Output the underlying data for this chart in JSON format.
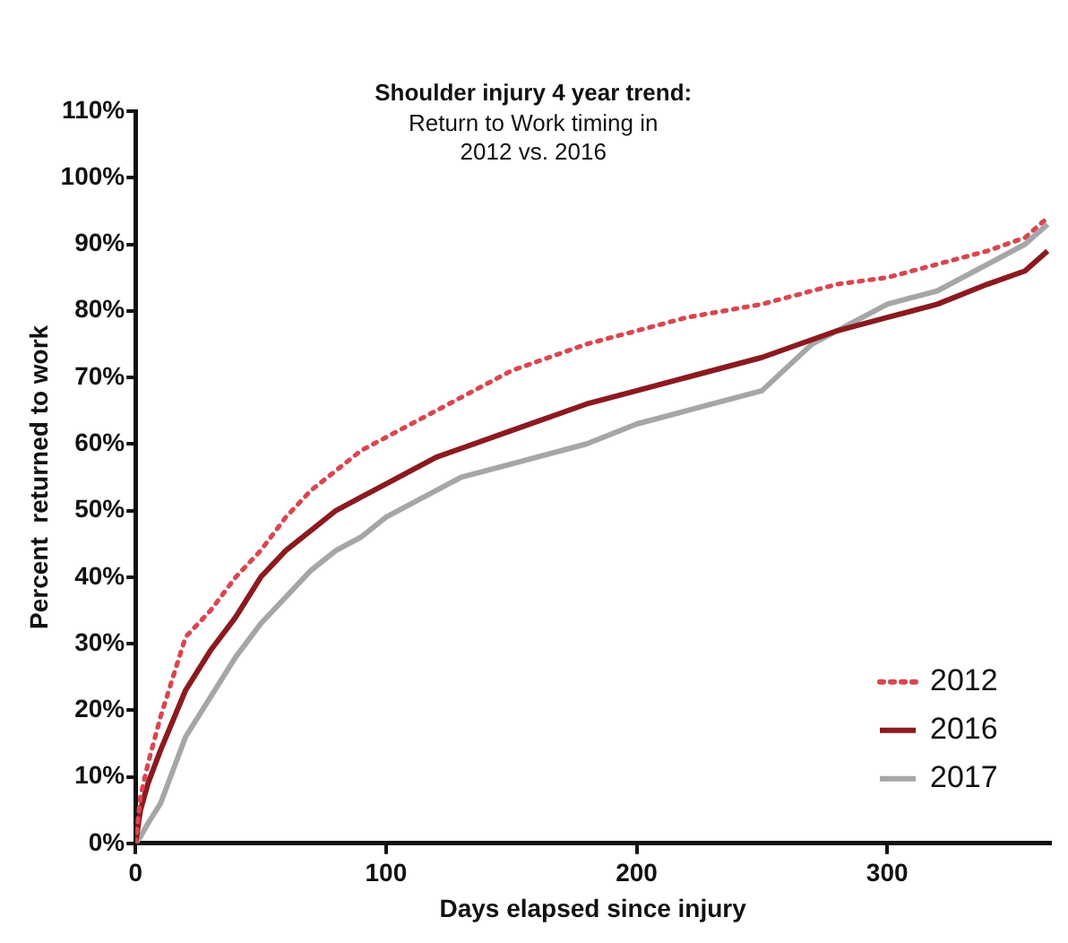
{
  "chart_data": {
    "type": "line",
    "title": "Shoulder injury 4 year trend:",
    "subtitle": "Return to Work timing in 2012 vs. 2016",
    "xlabel": "Days elapsed since injury",
    "ylabel": "Percent  returned to work",
    "xlim": [
      0,
      365
    ],
    "xticks": [
      0,
      100,
      200,
      300
    ],
    "ylim": [
      0,
      110
    ],
    "yticks": [
      {
        "value": 0,
        "label": "0%"
      },
      {
        "value": 10,
        "label": "10%"
      },
      {
        "value": 20,
        "label": "20%"
      },
      {
        "value": 30,
        "label": "30%"
      },
      {
        "value": 40,
        "label": "40%"
      },
      {
        "value": 50,
        "label": "50%"
      },
      {
        "value": 60,
        "label": "60%"
      },
      {
        "value": 70,
        "label": "70%"
      },
      {
        "value": 80,
        "label": "80%"
      },
      {
        "value": 90,
        "label": "90%"
      },
      {
        "value": 100,
        "label": "100%"
      },
      {
        "value": 110,
        "label": "110%"
      }
    ],
    "grid": false,
    "legend": "bottom right",
    "marker": "none",
    "series": [
      {
        "name": "2012",
        "color": "#d9464f",
        "line_style": "dotted",
        "x": [
          0,
          2,
          5,
          10,
          20,
          30,
          40,
          50,
          60,
          70,
          80,
          90,
          100,
          120,
          150,
          180,
          200,
          220,
          250,
          280,
          300,
          320,
          340,
          355,
          364
        ],
        "values": [
          0,
          7,
          12,
          19,
          31,
          35,
          40,
          44,
          49,
          53,
          56,
          59,
          61,
          65,
          71,
          75,
          77,
          79,
          81,
          84,
          85,
          87,
          89,
          91,
          94
        ]
      },
      {
        "name": "2016",
        "color": "#8b1a1f",
        "line_style": "solid",
        "x": [
          0,
          2,
          5,
          10,
          20,
          30,
          40,
          50,
          60,
          70,
          80,
          90,
          100,
          120,
          150,
          180,
          200,
          220,
          250,
          280,
          300,
          320,
          340,
          355,
          364
        ],
        "values": [
          0,
          5,
          9,
          14,
          23,
          29,
          34,
          40,
          44,
          47,
          50,
          52,
          54,
          58,
          62,
          66,
          68,
          70,
          73,
          77,
          79,
          81,
          84,
          86,
          89
        ]
      },
      {
        "name": "2017",
        "color": "#a6a6a8",
        "line_style": "solid",
        "x": [
          0,
          2,
          5,
          10,
          20,
          30,
          40,
          50,
          60,
          70,
          80,
          90,
          100,
          130,
          150,
          180,
          200,
          220,
          250,
          270,
          300,
          320,
          340,
          355,
          364
        ],
        "values": [
          0,
          1,
          3,
          6,
          16,
          22,
          28,
          33,
          37,
          41,
          44,
          46,
          49,
          55,
          57,
          60,
          63,
          65,
          68,
          75,
          81,
          83,
          87,
          90,
          93
        ]
      }
    ]
  }
}
